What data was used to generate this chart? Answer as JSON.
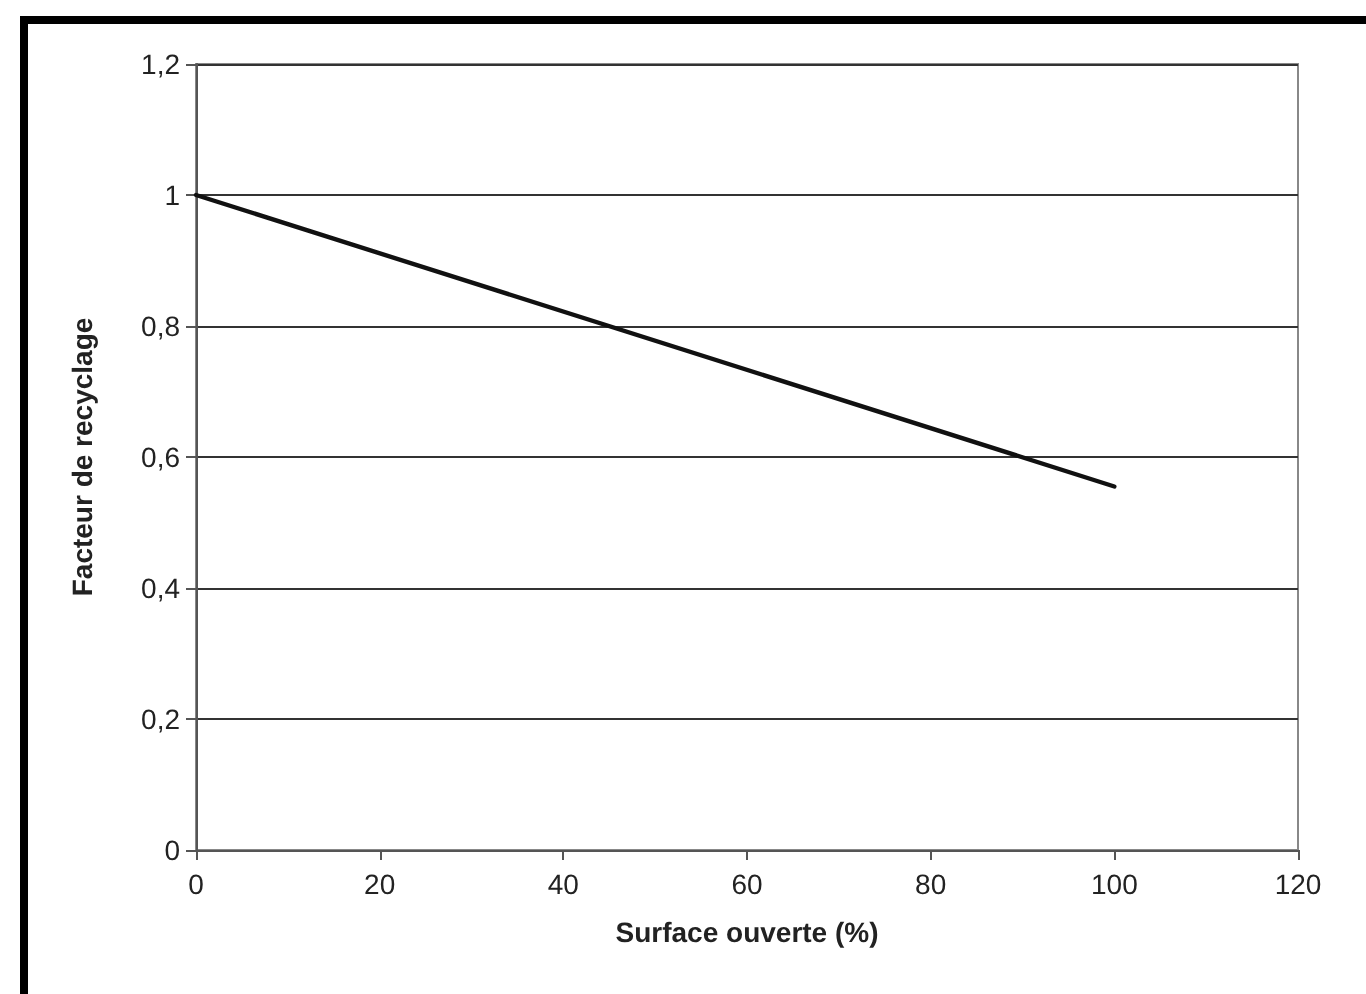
{
  "chart_data": {
    "type": "line",
    "xlabel": "Surface ouverte (%)",
    "ylabel": "Facteur de recyclage",
    "x": [
      0,
      100
    ],
    "series": [
      {
        "color": "#111111",
        "values": [
          1,
          0.555
        ]
      }
    ],
    "xlim": [
      0,
      120
    ],
    "xticks": [
      0,
      20,
      40,
      60,
      80,
      100,
      120
    ],
    "ylim": [
      0,
      1.2
    ],
    "yticks": [
      0,
      {
        "value": 0.2,
        "label": "0,2"
      },
      {
        "value": 0.4,
        "label": "0,4"
      },
      {
        "value": 0.6,
        "label": "0,6"
      },
      {
        "value": 0.8,
        "label": "0,8"
      },
      1,
      {
        "value": 1.2,
        "label": "1,2"
      }
    ],
    "grid": "y",
    "marker": "none",
    "line_style": "solid"
  }
}
